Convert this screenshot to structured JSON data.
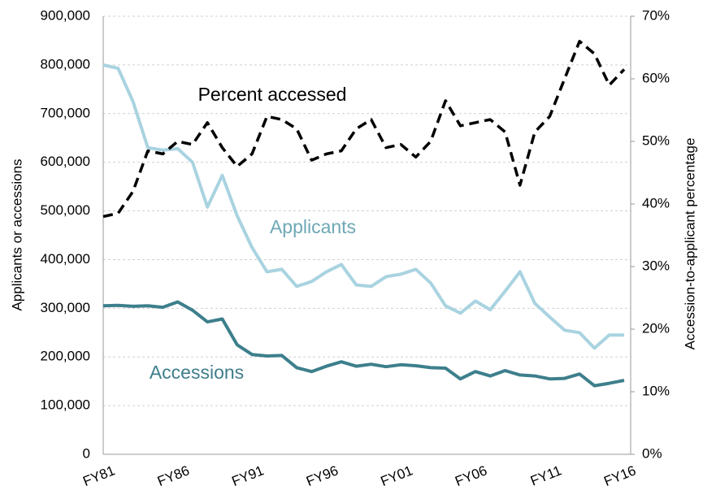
{
  "chart_data": {
    "type": "line",
    "categories": [
      "FY81",
      null,
      null,
      null,
      null,
      "FY86",
      null,
      null,
      null,
      null,
      "FY91",
      null,
      null,
      null,
      null,
      "FY96",
      null,
      null,
      null,
      null,
      "FY01",
      null,
      null,
      null,
      null,
      "FY06",
      null,
      null,
      null,
      null,
      "FY11",
      null,
      null,
      null,
      null,
      "FY16"
    ],
    "series": [
      {
        "name": "Applicants",
        "color": "#a9d3e0",
        "values": [
          800000,
          793000,
          725000,
          630000,
          625000,
          628000,
          600000,
          508000,
          573000,
          490000,
          425000,
          375000,
          380000,
          345000,
          355000,
          375000,
          390000,
          348000,
          345000,
          365000,
          370000,
          380000,
          352000,
          305000,
          290000,
          315000,
          297000,
          335000,
          375000,
          310000,
          282000,
          255000,
          250000,
          218000,
          245000,
          245000
        ]
      },
      {
        "name": "Accessions",
        "color": "#3d7f8c",
        "values": [
          305000,
          306000,
          304000,
          305000,
          302000,
          313000,
          296000,
          272000,
          278000,
          225000,
          205000,
          202000,
          203000,
          178000,
          170000,
          181000,
          190000,
          181000,
          185000,
          180000,
          184000,
          182000,
          178000,
          177000,
          155000,
          170000,
          161000,
          172000,
          163000,
          161000,
          155000,
          156000,
          165000,
          141000,
          146000,
          152000
        ]
      },
      {
        "name": "Percent accessed",
        "color": "#000000",
        "axis": "y2",
        "dashed": true,
        "values": [
          38,
          38.5,
          42,
          48.5,
          48,
          50,
          49.5,
          53,
          49,
          46,
          48,
          54,
          53.5,
          52,
          47,
          48,
          48.5,
          52,
          53.5,
          49,
          49.5,
          47.5,
          50,
          56.5,
          52.5,
          53,
          53.5,
          51.5,
          43,
          51.5,
          54,
          60,
          66,
          64,
          59,
          61.5
        ]
      }
    ],
    "ylabel": "Applicants or accessions",
    "y2label": "Accession-to-applicant  percentage",
    "ylim": [
      0,
      900000
    ],
    "yticks": [
      0,
      {
        "value": 100000,
        "label": "100,000"
      },
      {
        "value": 200000,
        "label": "200,000"
      },
      {
        "value": 300000,
        "label": "300,000"
      },
      {
        "value": 400000,
        "label": "400,000"
      },
      {
        "value": 500000,
        "label": "500,000"
      },
      {
        "value": 600000,
        "label": "600,000"
      },
      {
        "value": 700000,
        "label": "700,000"
      },
      {
        "value": 800000,
        "label": "800,000"
      },
      {
        "value": 900000,
        "label": "900,000"
      }
    ],
    "y2lim": [
      0,
      70
    ],
    "y2ticks": [
      {
        "value": 0,
        "label": "0%"
      },
      {
        "value": 10,
        "label": "10%"
      },
      {
        "value": 20,
        "label": "20%"
      },
      {
        "value": 30,
        "label": "30%"
      },
      {
        "value": 40,
        "label": "40%"
      },
      {
        "value": 50,
        "label": "50%"
      },
      {
        "value": 60,
        "label": "60%"
      },
      {
        "value": 70,
        "label": "70%"
      }
    ],
    "grid": true
  }
}
